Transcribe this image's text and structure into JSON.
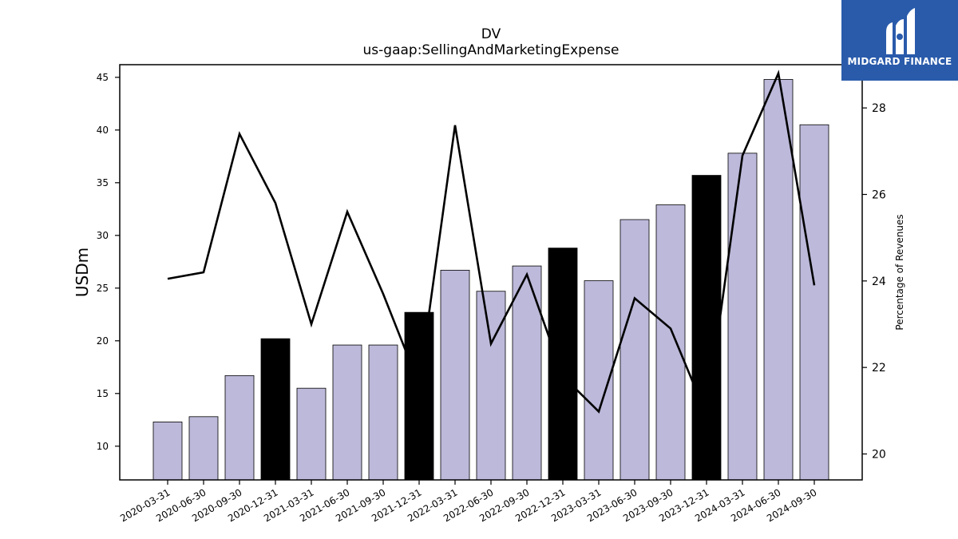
{
  "chart_data": {
    "type": "bar",
    "title": "DV",
    "subtitle": "us-gaap:SellingAndMarketingExpense",
    "ylabel": "USDm",
    "y2label": "Percentage of Revenues",
    "categories": [
      "2020-03-31",
      "2020-06-30",
      "2020-09-30",
      "2020-12-31",
      "2021-03-31",
      "2021-06-30",
      "2021-09-30",
      "2021-12-31",
      "2022-03-31",
      "2022-06-30",
      "2022-09-30",
      "2022-12-31",
      "2023-03-31",
      "2023-06-30",
      "2023-09-30",
      "2023-12-31",
      "2024-03-31",
      "2024-06-30",
      "2024-09-30"
    ],
    "series": [
      {
        "type": "bar",
        "values": [
          12.3,
          12.8,
          16.7,
          20.2,
          15.5,
          19.6,
          19.6,
          22.7,
          26.7,
          24.7,
          27.1,
          28.8,
          25.7,
          31.5,
          32.9,
          35.7,
          37.8,
          44.8,
          40.5
        ],
        "highlight": [
          false,
          false,
          false,
          true,
          false,
          false,
          false,
          true,
          false,
          false,
          false,
          true,
          false,
          false,
          false,
          true,
          false,
          false,
          false
        ],
        "color": "#bcb9da",
        "highlight_color": "#000000"
      },
      {
        "type": "line",
        "axis": "right",
        "values": [
          24.05,
          24.2,
          27.4,
          25.8,
          23.0,
          25.6,
          23.7,
          21.6,
          27.6,
          22.55,
          24.15,
          21.8,
          20.98,
          23.6,
          22.9,
          20.9,
          26.9,
          28.8,
          23.9
        ],
        "color": "#000000"
      }
    ],
    "ylim": [
      6.8,
      46.2
    ],
    "y2lim": [
      19.4,
      29.0
    ],
    "yticks": [
      10,
      15,
      20,
      25,
      30,
      35,
      40,
      45
    ],
    "y2ticks": [
      20,
      22,
      24,
      26,
      28
    ],
    "grid": false
  },
  "logo": {
    "text": "MIDGARD FINANCE"
  }
}
